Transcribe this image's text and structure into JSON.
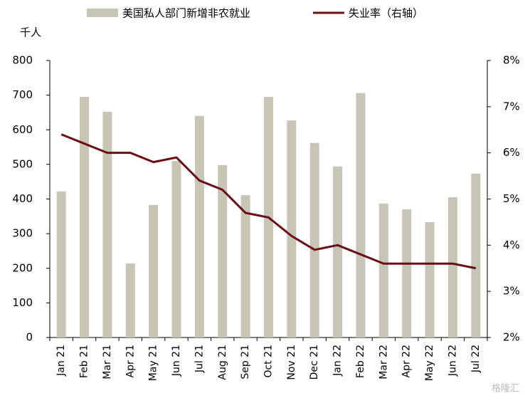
{
  "chart_data": {
    "type": "bar",
    "y_label": "千人",
    "categories": [
      "Jan 21",
      "Feb 21",
      "Mar 21",
      "Apr 21",
      "May 21",
      "Jun 21",
      "Jul 21",
      "Aug 21",
      "Sep 21",
      "Oct 21",
      "Nov 21",
      "Dec 21",
      "Jan 22",
      "Feb 22",
      "Mar 22",
      "Apr 22",
      "May 22",
      "Jun 22",
      "Jul 22"
    ],
    "series": [
      {
        "name": "美国私人部门新增非农就业",
        "color": "#c7c5b6",
        "type": "bar",
        "values": [
          422,
          695,
          652,
          214,
          383,
          510,
          640,
          498,
          411,
          695,
          627,
          562,
          494,
          706,
          387,
          370,
          333,
          405,
          473
        ]
      },
      {
        "name": "失业率（右轴）",
        "color": "#6b0f14",
        "type": "line",
        "axis": "y2",
        "values": [
          6.4,
          6.2,
          6.0,
          6.0,
          5.8,
          5.9,
          5.4,
          5.2,
          4.7,
          4.6,
          4.2,
          3.9,
          4.0,
          3.8,
          3.6,
          3.6,
          3.6,
          3.6,
          3.5
        ]
      }
    ],
    "ylim": [
      0,
      800
    ],
    "yticks": [
      0,
      100,
      200,
      300,
      400,
      500,
      600,
      700,
      800
    ],
    "y2lim": [
      2,
      8
    ],
    "y2ticks": [
      {
        "value": 2,
        "label": "2%"
      },
      {
        "value": 3,
        "label": "3%"
      },
      {
        "value": 4,
        "label": "4%"
      },
      {
        "value": 5,
        "label": "5%"
      },
      {
        "value": 6,
        "label": "6%"
      },
      {
        "value": 7,
        "label": "7%"
      },
      {
        "value": 8,
        "label": "8%"
      }
    ],
    "watermark": "格隆汇"
  }
}
